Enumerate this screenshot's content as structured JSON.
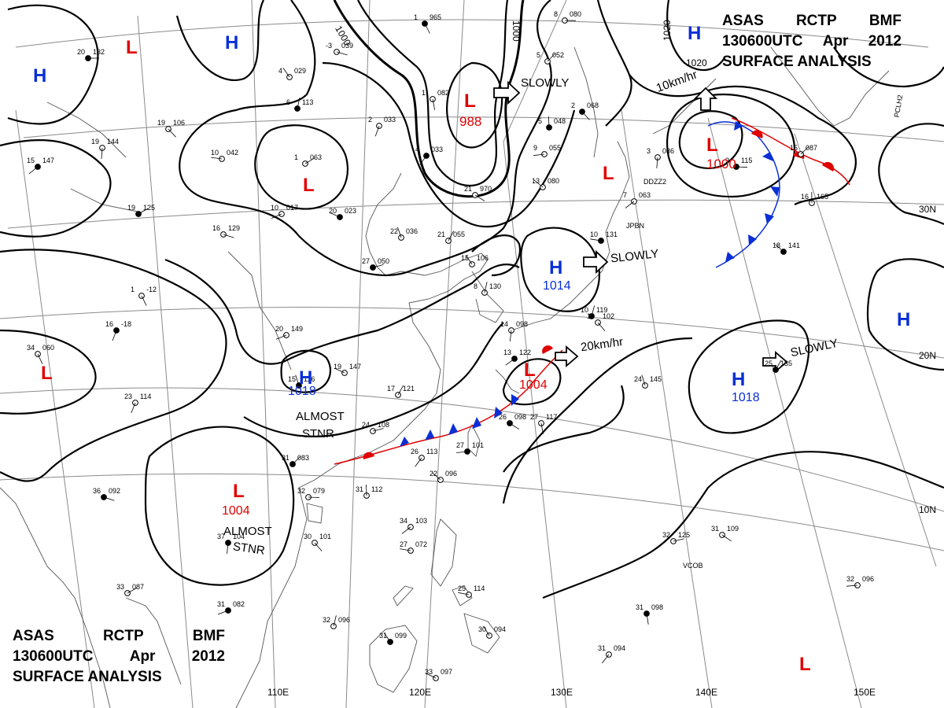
{
  "header": {
    "line1": [
      "ASAS",
      "RCTP",
      "BMF"
    ],
    "line2": [
      "130600UTC",
      "Apr",
      "2012"
    ],
    "line3": "SURFACE ANALYSIS"
  },
  "colors": {
    "low": "#e00000",
    "high": "#0a2fd6",
    "isobar": "#000000",
    "grid": "#8a8a8a",
    "coast": "#555555"
  },
  "longitude_labels": [
    "110E",
    "120E",
    "130E",
    "140E",
    "150E"
  ],
  "latitude_labels": [
    "30N",
    "20N",
    "10N"
  ],
  "isobar_labels": [
    "1000",
    "1000",
    "1020",
    "1020"
  ],
  "pressure_centers": [
    {
      "type": "H",
      "value": ""
    },
    {
      "type": "H",
      "value": ""
    },
    {
      "type": "H",
      "value": ""
    },
    {
      "type": "L",
      "value": ""
    },
    {
      "type": "L",
      "value": ""
    },
    {
      "type": "L",
      "value": "988"
    },
    {
      "type": "L",
      "value": ""
    },
    {
      "type": "L",
      "value": "1000"
    },
    {
      "type": "H",
      "value": "1014"
    },
    {
      "type": "H",
      "value": "1018"
    },
    {
      "type": "L",
      "value": "1004"
    },
    {
      "type": "H",
      "value": ""
    },
    {
      "type": "H",
      "value": "1018"
    },
    {
      "type": "L",
      "value": ""
    },
    {
      "type": "L",
      "value": "1004"
    },
    {
      "type": "L",
      "value": ""
    }
  ],
  "annotations": [
    "SLOWLY",
    "10km/hr",
    "SLOWLY",
    "20km/hr",
    "SLOWLY",
    "ALMOST",
    "STNR",
    "ALMOST",
    "STNR"
  ],
  "stations": [
    {
      "t": "20",
      "p": "132"
    },
    {
      "t": "19",
      "p": "106"
    },
    {
      "t": "19",
      "p": "144"
    },
    {
      "t": "15",
      "p": "147"
    },
    {
      "t": "10",
      "p": "042"
    },
    {
      "t": "4",
      "p": "029"
    },
    {
      "t": "6",
      "p": "113"
    },
    {
      "t": "1",
      "p": "063"
    },
    {
      "t": "-3",
      "p": "039"
    },
    {
      "t": "1",
      "p": "965"
    },
    {
      "t": "2",
      "p": "033"
    },
    {
      "t": "10",
      "p": "017"
    },
    {
      "t": "20",
      "p": "023"
    },
    {
      "t": "22",
      "p": "036"
    },
    {
      "t": "21",
      "p": "055"
    },
    {
      "t": "27",
      "p": "050"
    },
    {
      "t": "21",
      "p": "970"
    },
    {
      "t": "1",
      "p": "082"
    },
    {
      "t": "4",
      "p": "033"
    },
    {
      "t": "9",
      "p": "055"
    },
    {
      "t": "13",
      "p": "080"
    },
    {
      "t": "5",
      "p": "048"
    },
    {
      "t": "5",
      "p": "052"
    },
    {
      "t": "8",
      "p": "080"
    },
    {
      "t": "2",
      "p": "068"
    },
    {
      "t": "3",
      "p": "086"
    },
    {
      "t": "7",
      "p": "063"
    },
    {
      "t": "10",
      "p": "131"
    },
    {
      "t": "15",
      "p": "106"
    },
    {
      "t": "8",
      "p": "130"
    },
    {
      "t": "19",
      "p": "125"
    },
    {
      "t": "16",
      "p": "129"
    },
    {
      "t": "1",
      "p": "-12"
    },
    {
      "t": "16",
      "p": "-18"
    },
    {
      "t": "20",
      "p": "149"
    },
    {
      "t": "19",
      "p": "147"
    },
    {
      "t": "15",
      "p": "116"
    },
    {
      "t": "17",
      "p": "121"
    },
    {
      "t": "24",
      "p": "108"
    },
    {
      "t": "26",
      "p": "098"
    },
    {
      "t": "27",
      "p": "117"
    },
    {
      "t": "26",
      "p": "113"
    },
    {
      "t": "27",
      "p": "101"
    },
    {
      "t": "22",
      "p": "096"
    },
    {
      "t": "31",
      "p": "112"
    },
    {
      "t": "31",
      "p": "083"
    },
    {
      "t": "32",
      "p": "079"
    },
    {
      "t": "30",
      "p": "101"
    },
    {
      "t": "37",
      "p": "104"
    },
    {
      "t": "34",
      "p": "103"
    },
    {
      "t": "27",
      "p": "072"
    },
    {
      "t": "31",
      "p": "099"
    },
    {
      "t": "32",
      "p": "096"
    },
    {
      "t": "33",
      "p": "087"
    },
    {
      "t": "36",
      "p": "092"
    },
    {
      "t": "34",
      "p": "060"
    },
    {
      "t": "23",
      "p": "114"
    },
    {
      "t": "31",
      "p": "082"
    },
    {
      "t": "33",
      "p": "097"
    },
    {
      "t": "24",
      "p": "145"
    },
    {
      "t": "25",
      "p": "135"
    },
    {
      "t": "32",
      "p": "125"
    },
    {
      "t": "31",
      "p": "109"
    },
    {
      "t": "31",
      "p": "098"
    },
    {
      "t": "31",
      "p": "094"
    },
    {
      "t": "32",
      "p": "096"
    },
    {
      "t": "18",
      "p": "141"
    },
    {
      "t": "16",
      "p": "165"
    },
    {
      "t": "15",
      "p": "087"
    },
    {
      "t": "9",
      "p": "115"
    },
    {
      "t": "19",
      "p": "102"
    },
    {
      "t": "14",
      "p": "098"
    },
    {
      "t": "13",
      "p": "122"
    },
    {
      "t": "25",
      "p": "114"
    },
    {
      "t": "30",
      "p": "094"
    },
    {
      "t": "10",
      "p": "119"
    }
  ],
  "station_codes": [
    "DDZZ2",
    "JPBN",
    "PCLH2",
    "VCOB"
  ]
}
